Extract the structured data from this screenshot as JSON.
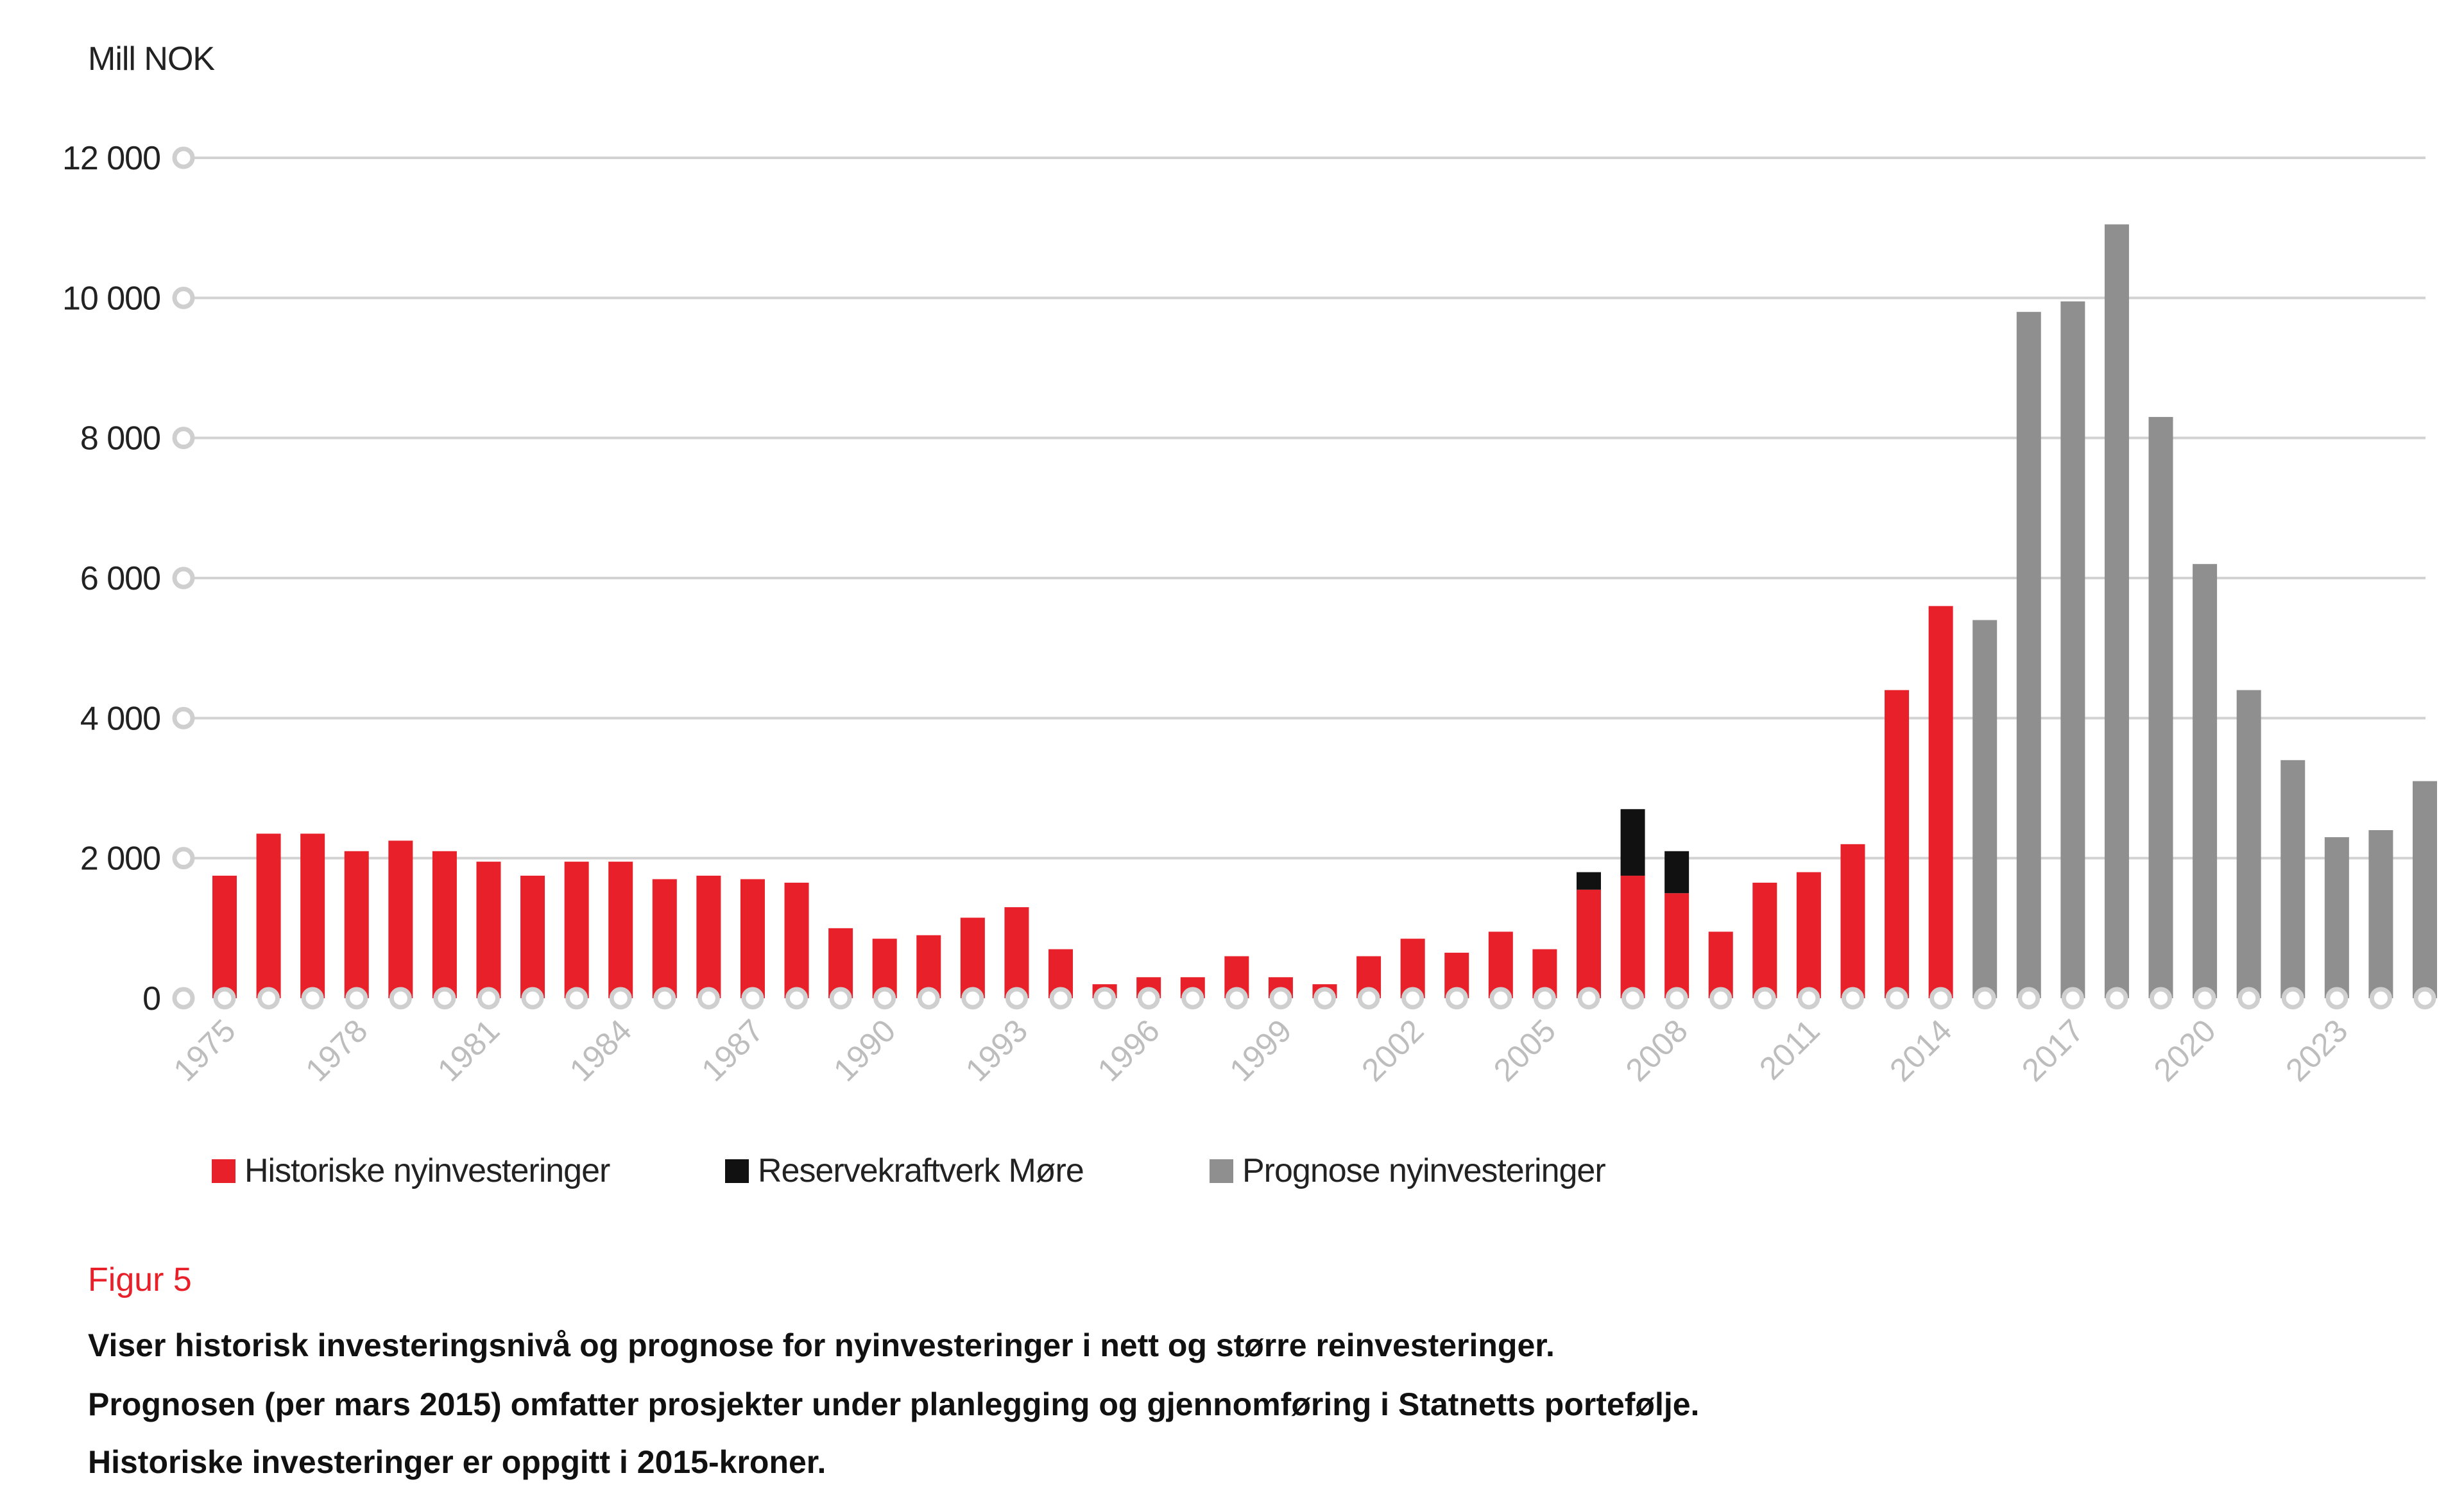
{
  "chart_data": {
    "type": "bar",
    "stacked": true,
    "ylabel": "Mill NOK",
    "ylim": [
      0,
      12000
    ],
    "yticks": [
      0,
      2000,
      4000,
      6000,
      8000,
      10000,
      12000
    ],
    "ytick_labels": [
      "0",
      "2 000",
      "4 000",
      "6 000",
      "8 000",
      "10 000",
      "12 000"
    ],
    "grid": true,
    "categories": [
      1975,
      1976,
      1977,
      1978,
      1979,
      1980,
      1981,
      1982,
      1983,
      1984,
      1985,
      1986,
      1987,
      1988,
      1989,
      1990,
      1991,
      1992,
      1993,
      1994,
      1995,
      1996,
      1997,
      1998,
      1999,
      2000,
      2001,
      2002,
      2003,
      2004,
      2005,
      2006,
      2007,
      2008,
      2009,
      2010,
      2011,
      2012,
      2013,
      2014,
      2015,
      2016,
      2017,
      2018,
      2019,
      2020,
      2021,
      2022,
      2023,
      2024,
      2025
    ],
    "xtick_labels": [
      "1975",
      "1978",
      "1981",
      "1984",
      "1987",
      "1990",
      "1993",
      "1996",
      "1999",
      "2002",
      "2005",
      "2008",
      "2011",
      "2014",
      "2017",
      "2020",
      "2023"
    ],
    "series": [
      {
        "name": "Historiske nyinvesteringer",
        "color": "#e8202a",
        "values": [
          1750,
          2350,
          2350,
          2100,
          2250,
          2100,
          1950,
          1750,
          1950,
          1950,
          1700,
          1750,
          1700,
          1650,
          1000,
          850,
          900,
          1150,
          1300,
          700,
          200,
          300,
          300,
          600,
          300,
          200,
          600,
          850,
          650,
          950,
          700,
          1550,
          1750,
          1500,
          950,
          1650,
          1800,
          2200,
          4400,
          5600,
          0,
          0,
          0,
          0,
          0,
          0,
          0,
          0,
          0,
          0,
          0
        ]
      },
      {
        "name": "Reservekraftverk Møre",
        "color": "#111111",
        "values": [
          0,
          0,
          0,
          0,
          0,
          0,
          0,
          0,
          0,
          0,
          0,
          0,
          0,
          0,
          0,
          0,
          0,
          0,
          0,
          0,
          0,
          0,
          0,
          0,
          0,
          0,
          0,
          0,
          0,
          0,
          0,
          250,
          950,
          600,
          0,
          0,
          0,
          0,
          0,
          0,
          0,
          0,
          0,
          0,
          0,
          0,
          0,
          0,
          0,
          0,
          0
        ]
      },
      {
        "name": "Prognose nyinvesteringer",
        "color": "#8f8f8f",
        "values": [
          0,
          0,
          0,
          0,
          0,
          0,
          0,
          0,
          0,
          0,
          0,
          0,
          0,
          0,
          0,
          0,
          0,
          0,
          0,
          0,
          0,
          0,
          0,
          0,
          0,
          0,
          0,
          0,
          0,
          0,
          0,
          0,
          0,
          0,
          0,
          0,
          0,
          0,
          0,
          0,
          5400,
          9800,
          9950,
          11050,
          8300,
          6200,
          4400,
          3400,
          2300,
          2400,
          3100
        ]
      }
    ],
    "legend_position": "bottom-left"
  },
  "caption": {
    "title": "Figur 5",
    "lines": [
      "Viser historisk investeringsnivå og prognose for  nyinvesteringer i nett og større reinvesteringer.",
      "Prognosen (per mars 2015) omfatter prosjekter under planlegging og gjennomføring i Statnetts portefølje.",
      "Historiske investeringer er oppgitt i 2015-kroner."
    ]
  }
}
